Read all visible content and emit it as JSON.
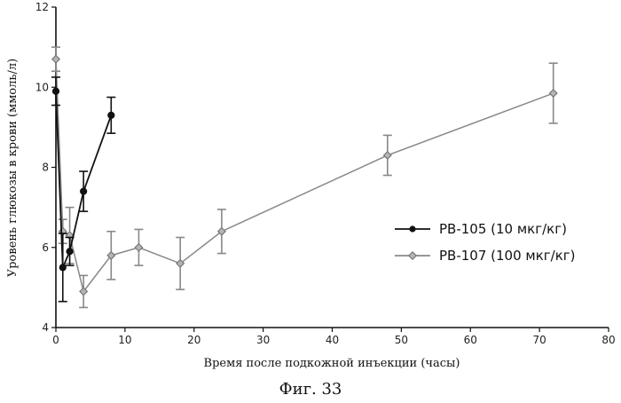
{
  "chart_data": {
    "type": "line",
    "xlabel": "Время после подкожной инъекции (часы)",
    "ylabel": "Уровень глюкозы в крови (ммоль/л)",
    "xlim": [
      0,
      80
    ],
    "ylim": [
      4,
      12
    ],
    "x_ticks": [
      "0",
      "10",
      "20",
      "30",
      "40",
      "50",
      "60",
      "70",
      "80"
    ],
    "y_ticks": [
      "4",
      "6",
      "8",
      "10",
      "12"
    ],
    "grid": false,
    "legend_position": "right",
    "series": [
      {
        "name": "PB-105  (10 мкг/кг)",
        "color": "#111111",
        "marker": "filled-circle",
        "x": [
          0,
          1,
          2,
          4,
          8
        ],
        "y": [
          9.9,
          5.5,
          5.9,
          7.4,
          9.3
        ],
        "err": [
          0.35,
          0.85,
          0.35,
          0.5,
          0.45
        ]
      },
      {
        "name": "PB-107  (100 мкг/кг)",
        "color": "#888888",
        "marker": "grey-diamond",
        "x": [
          0,
          1,
          2,
          4,
          8,
          12,
          18,
          24,
          48,
          72
        ],
        "y": [
          10.7,
          6.4,
          6.3,
          4.9,
          5.8,
          6.0,
          5.6,
          6.4,
          8.3,
          9.85
        ],
        "err": [
          0.3,
          0.3,
          0.7,
          0.4,
          0.6,
          0.45,
          0.65,
          0.55,
          0.5,
          0.75
        ]
      }
    ]
  },
  "caption": "Фиг. 33"
}
